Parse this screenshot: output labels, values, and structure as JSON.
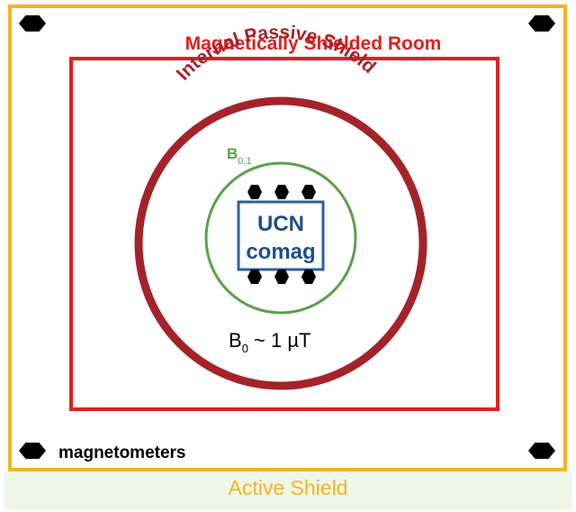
{
  "colors": {
    "active_shield": "#f2b51f",
    "active_band": "#eef7e8",
    "room": "#e0201f",
    "passive_shield": "#a4232a",
    "b01_field": "#5ca04c",
    "ucn_box": "#2c5f9e",
    "ucn_text": "#1f4e8a",
    "sensor": "#000000",
    "text": "#000000"
  },
  "labels": {
    "room": "Magnetically Shielded Room",
    "passive_shield": "Internal Passive Shield",
    "b01_main": "B",
    "b01_sub": "0,1",
    "ucn_line1": "UCN",
    "ucn_line2": "comag",
    "b0_main": "B",
    "b0_sub": "0",
    "b0_rest": " ~ 1 µT",
    "magnetometers": "magnetometers",
    "active_shield": "Active Shield"
  },
  "icons": {
    "sensor": "hexagon-sensor-icon"
  }
}
